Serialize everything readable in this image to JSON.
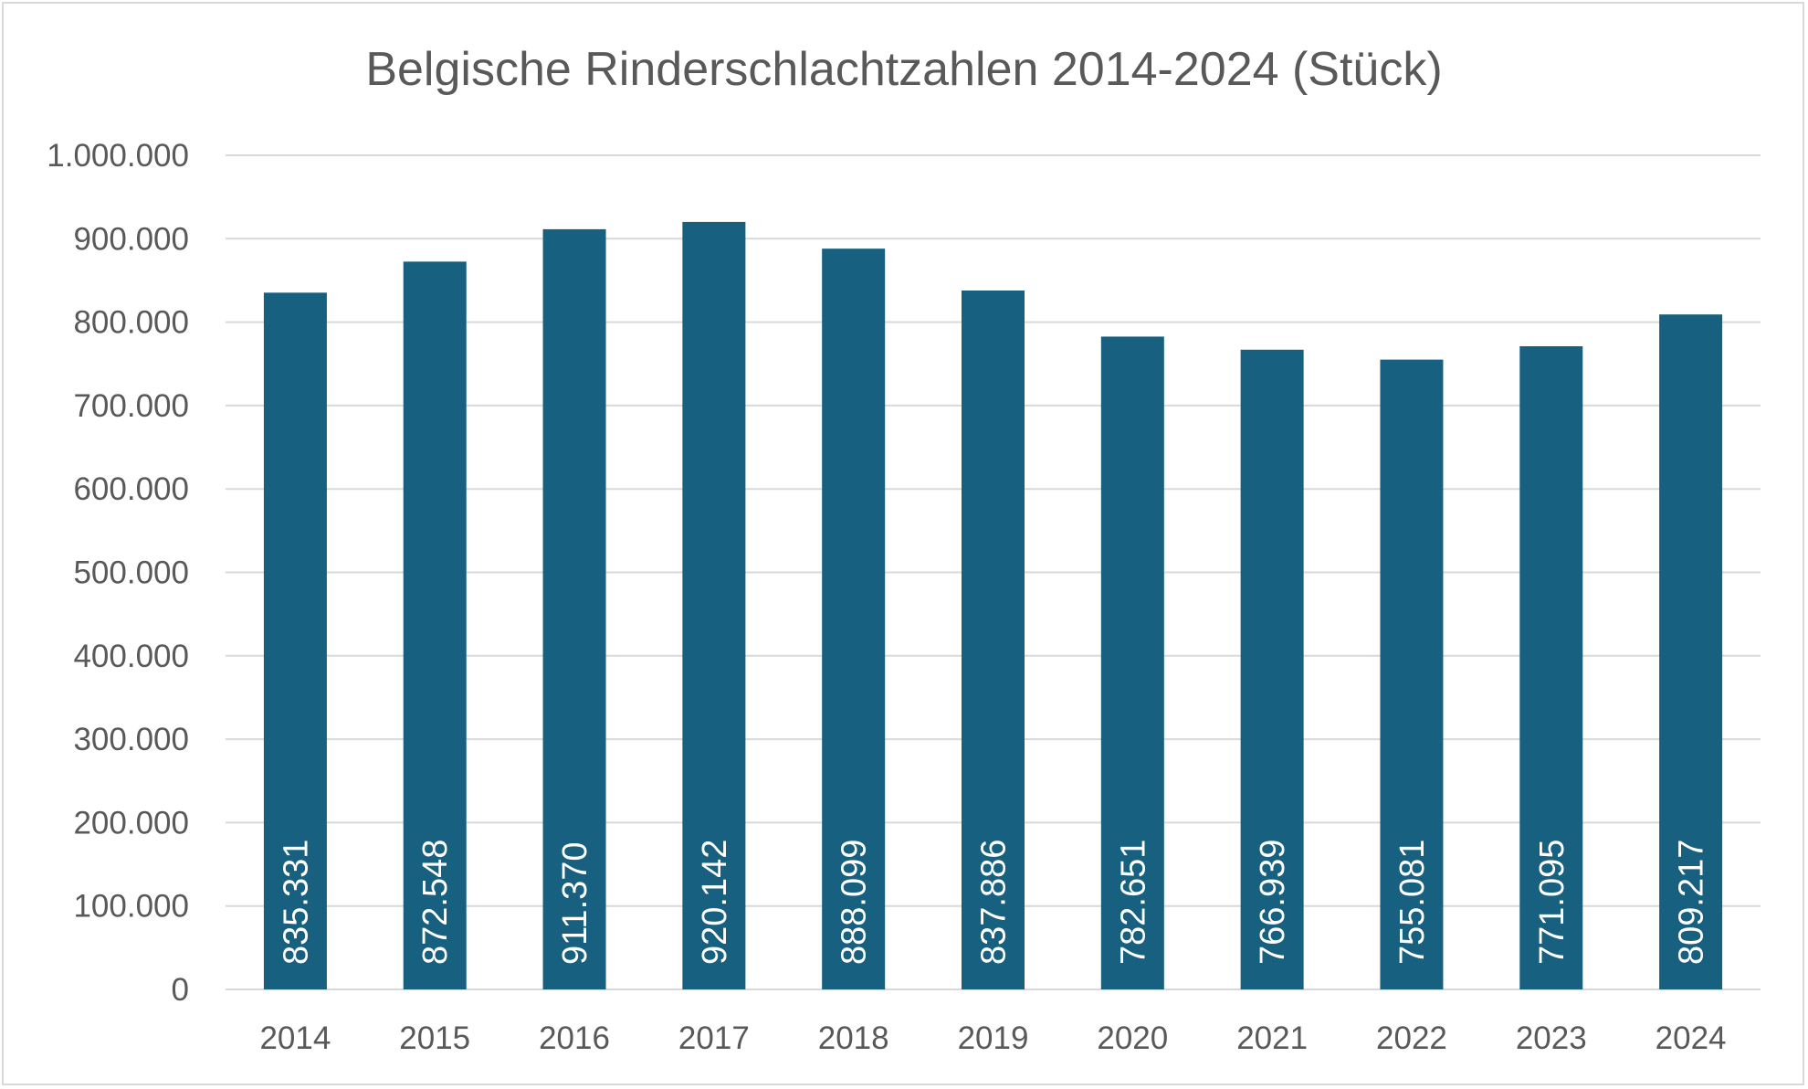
{
  "chart_data": {
    "type": "bar",
    "title": "Belgische Rinderschlachtzahlen 2014-2024 (Stück)",
    "xlabel": "",
    "ylabel": "",
    "categories": [
      "2014",
      "2015",
      "2016",
      "2017",
      "2018",
      "2019",
      "2020",
      "2021",
      "2022",
      "2023",
      "2024"
    ],
    "values": [
      835331,
      872548,
      911370,
      920142,
      888099,
      837886,
      782651,
      766939,
      755081,
      771095,
      809217
    ],
    "data_labels": [
      "835.331",
      "872.548",
      "911.370",
      "920.142",
      "888.099",
      "837.886",
      "782.651",
      "766.939",
      "755.081",
      "771.095",
      "809.217"
    ],
    "ylim": [
      0,
      1000000
    ],
    "y_ticks": [
      0,
      100000,
      200000,
      300000,
      400000,
      500000,
      600000,
      700000,
      800000,
      900000,
      1000000
    ],
    "y_tick_labels": [
      "0",
      "100.000",
      "200.000",
      "300.000",
      "400.000",
      "500.000",
      "600.000",
      "700.000",
      "800.000",
      "900.000",
      "1.000.000"
    ],
    "grid": true,
    "legend": "none",
    "bar_color": "#17607f",
    "grid_color": "#d9d9d9",
    "text_color": "#595959",
    "label_color": "#ffffff"
  }
}
